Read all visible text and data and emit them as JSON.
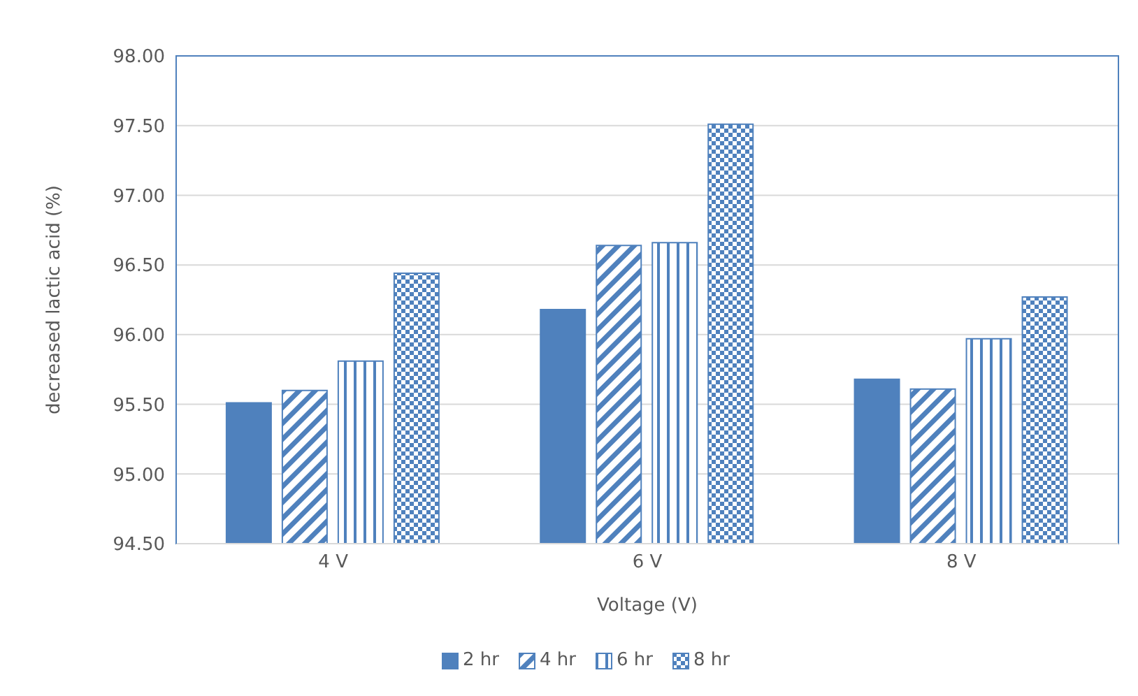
{
  "chart_data": {
    "type": "bar",
    "xlabel": "Voltage (V)",
    "ylabel": "decreased lactic acid (%)",
    "categories": [
      "4 V",
      "6 V",
      "8 V"
    ],
    "series": [
      {
        "name": "2 hr",
        "color": "#4f81bd",
        "values": [
          95.51,
          96.18,
          95.68
        ]
      },
      {
        "name": "4 hr",
        "color": "#4f81bd",
        "values": [
          95.6,
          96.64,
          95.61
        ]
      },
      {
        "name": "6 hr",
        "color": "#4f81bd",
        "values": [
          95.81,
          96.66,
          95.97
        ]
      },
      {
        "name": "8 hr",
        "color": "#4f81bd",
        "values": [
          96.44,
          97.51,
          96.27
        ]
      }
    ],
    "ylim": [
      94.5,
      98
    ],
    "yticks": [
      {
        "value": 94.5,
        "label": "94.50"
      },
      {
        "value": 95,
        "label": "95.00"
      },
      {
        "value": 95.5,
        "label": "95.50"
      },
      {
        "value": 96,
        "label": "96.00"
      },
      {
        "value": 96.5,
        "label": "96.50"
      },
      {
        "value": 97,
        "label": "97.00"
      },
      {
        "value": 97.5,
        "label": "97.50"
      },
      {
        "value": 98,
        "label": "98.00"
      }
    ],
    "grid": "y",
    "legend": "bottom"
  }
}
